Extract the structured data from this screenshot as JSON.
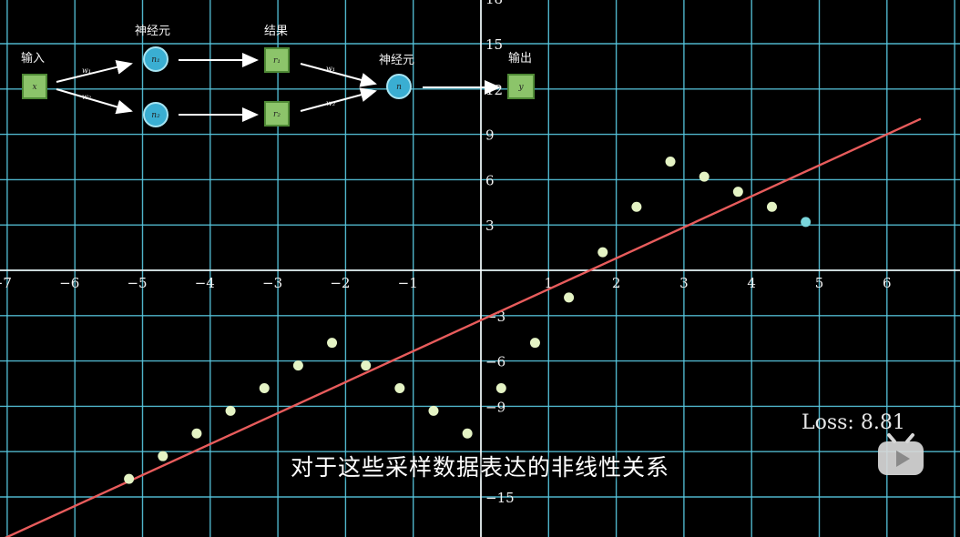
{
  "chart_data": {
    "type": "scatter",
    "x_ticks": [
      "−7",
      "−6",
      "−5",
      "−4",
      "−3",
      "−2",
      "−1",
      "1",
      "2",
      "3",
      "4",
      "5",
      "6"
    ],
    "y_ticks": [
      "18",
      "15",
      "12",
      "9",
      "6",
      "3",
      "−3",
      "−6",
      "−9",
      "−15"
    ],
    "xlim": [
      -7.1,
      6.5
    ],
    "ylim": [
      -16.7,
      17.7
    ],
    "points": [
      {
        "x": -5.2,
        "y": -13.8
      },
      {
        "x": -4.7,
        "y": -12.3
      },
      {
        "x": -4.2,
        "y": -10.8
      },
      {
        "x": -3.7,
        "y": -9.3
      },
      {
        "x": -3.2,
        "y": -7.8
      },
      {
        "x": -2.7,
        "y": -6.3
      },
      {
        "x": -2.2,
        "y": -4.8
      },
      {
        "x": -1.7,
        "y": -6.3
      },
      {
        "x": -1.2,
        "y": -7.8
      },
      {
        "x": -0.7,
        "y": -9.3
      },
      {
        "x": -0.2,
        "y": -10.8
      },
      {
        "x": 0.3,
        "y": -7.8
      },
      {
        "x": 0.8,
        "y": -4.8
      },
      {
        "x": 1.3,
        "y": -1.8
      },
      {
        "x": 1.8,
        "y": 1.2
      },
      {
        "x": 2.3,
        "y": 4.2
      },
      {
        "x": 2.8,
        "y": 7.2
      },
      {
        "x": 3.3,
        "y": 6.2
      },
      {
        "x": 3.8,
        "y": 5.2
      },
      {
        "x": 4.3,
        "y": 4.2
      },
      {
        "x": 4.8,
        "y": 3.2
      }
    ],
    "fit_line": {
      "slope": 2.05,
      "intercept": -3.3
    },
    "loss_text": "Loss: 8.81"
  },
  "network": {
    "input_label": "输入",
    "neuron_label_1": "神经元",
    "result_label": "结果",
    "neuron_label_2": "神经元",
    "output_label": "输出",
    "input_var": "x",
    "n1": "n₁",
    "n2": "n₂",
    "r1": "r₁",
    "r2": "r₂",
    "n": "n",
    "output_var": "y",
    "w1a": "w₁",
    "w2a": "w₂",
    "w1b": "w₁",
    "w2b": "w₂"
  },
  "subtitle": "对于这些采样数据表达的非线性关系",
  "colors": {
    "grid": "#58c8e0",
    "axis": "#ffffff",
    "line": "#e85c5c",
    "point_fill": "#e4f3c4",
    "point_teal": "#7ad6dc",
    "node_square": "#8cc46a",
    "node_circle": "#3aaed2"
  }
}
